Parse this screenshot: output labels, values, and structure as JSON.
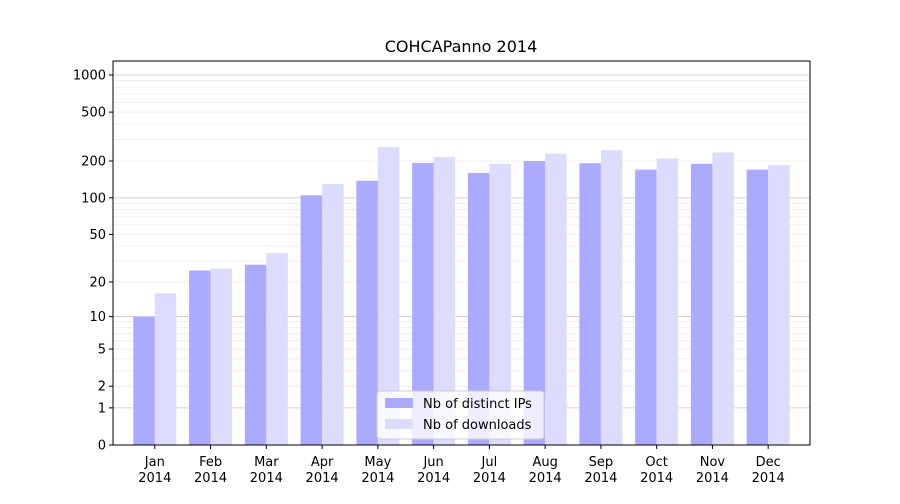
{
  "chart_data": {
    "type": "bar",
    "title": "COHCAPanno 2014",
    "xlabel": "",
    "ylabel": "",
    "yscale": "symlog",
    "ylim": [
      0,
      1300
    ],
    "y_ticks": [
      0,
      1,
      2,
      5,
      10,
      20,
      50,
      100,
      200,
      500,
      1000
    ],
    "categories": [
      [
        "Jan",
        "2014"
      ],
      [
        "Feb",
        "2014"
      ],
      [
        "Mar",
        "2014"
      ],
      [
        "Apr",
        "2014"
      ],
      [
        "May",
        "2014"
      ],
      [
        "Jun",
        "2014"
      ],
      [
        "Jul",
        "2014"
      ],
      [
        "Aug",
        "2014"
      ],
      [
        "Sep",
        "2014"
      ],
      [
        "Oct",
        "2014"
      ],
      [
        "Nov",
        "2014"
      ],
      [
        "Dec",
        "2014"
      ]
    ],
    "series": [
      {
        "name": "Nb of distinct IPs",
        "color": "#aaaaff",
        "values": [
          10,
          25,
          28,
          105,
          138,
          193,
          160,
          200,
          192,
          170,
          190,
          170
        ]
      },
      {
        "name": "Nb of downloads",
        "color": "#dcdcff",
        "values": [
          16,
          26,
          35,
          130,
          260,
          215,
          190,
          230,
          245,
          210,
          235,
          185
        ]
      }
    ],
    "grid": true,
    "legend": "bottom-center"
  }
}
